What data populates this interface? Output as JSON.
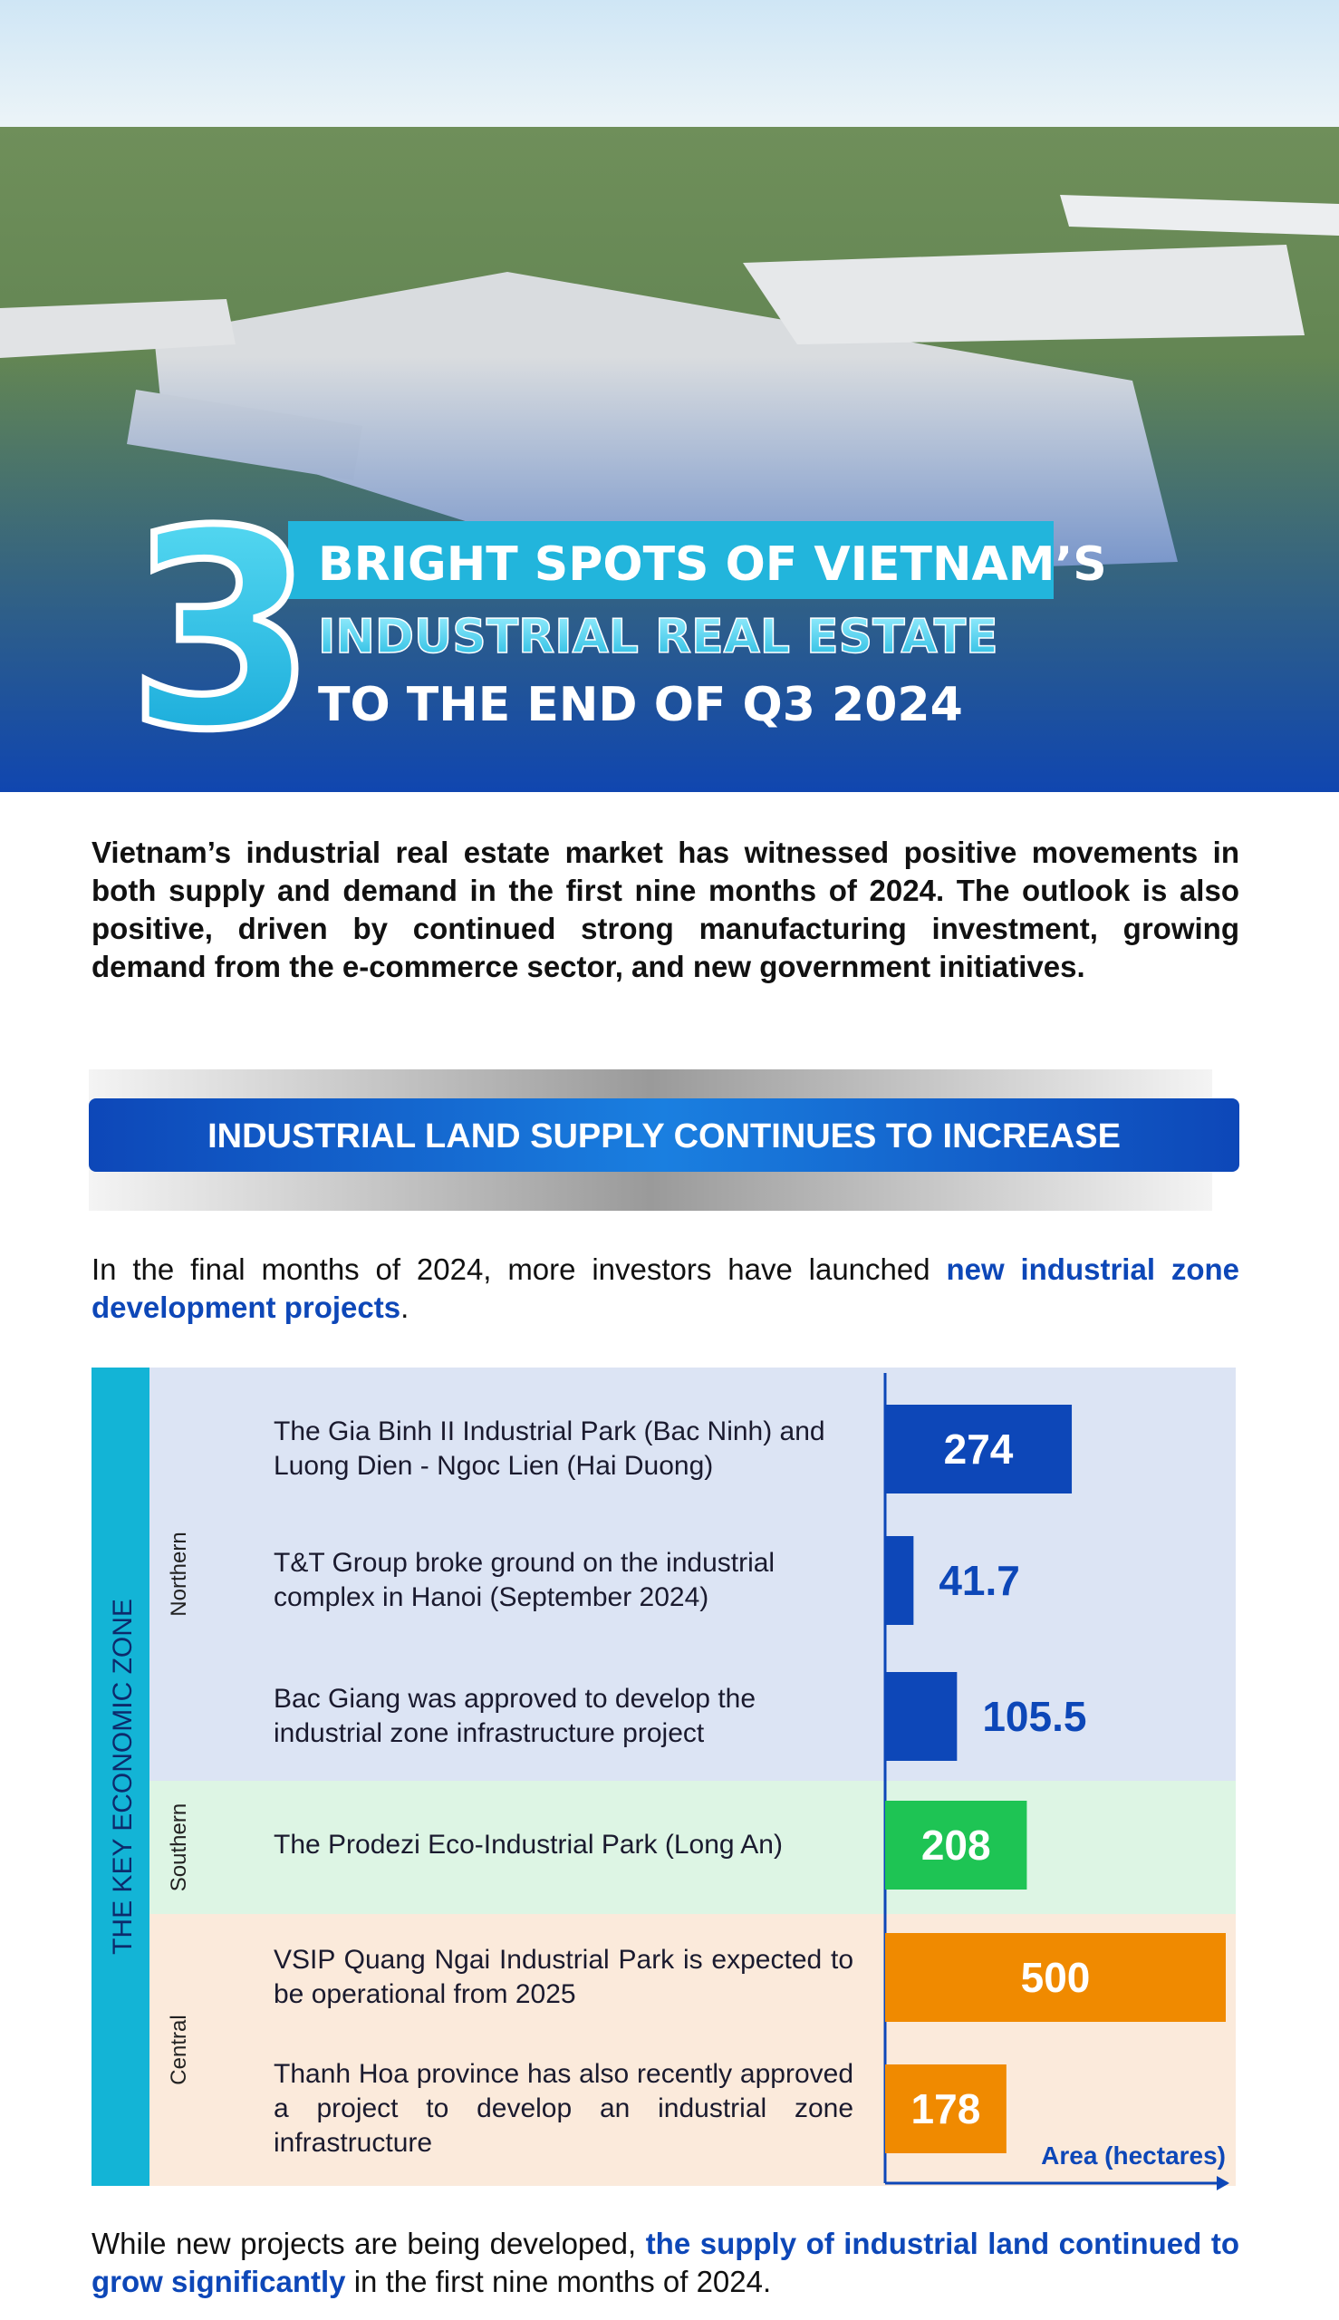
{
  "header": {
    "number": "3",
    "title_lines": [
      "BRIGHT SPOTS OF VIETNAM’S",
      "INDUSTRIAL REAL ESTATE",
      "TO THE END OF Q3 2024"
    ]
  },
  "intro": "Vietnam’s industrial real estate market has witnessed positive movements in both supply and demand in the first nine months of 2024. The outlook is also positive, driven by continued strong manufacturing investment, growing demand from the e-commerce sector, and new government initiatives.",
  "section_title": "INDUSTRIAL LAND SUPPLY CONTINUES TO INCREASE",
  "lead": {
    "text": "In the final months of 2024, more investors have launched",
    "highlight": "new industrial zone development projects",
    "end": "."
  },
  "chart_data": {
    "type": "bar",
    "orientation": "horizontal",
    "group_label": "THE KEY ECONOMIC ZONE",
    "x_label": "Area (hectares)",
    "xlim": [
      0,
      500
    ],
    "series": [
      {
        "name": "Northern",
        "color": "#0d47b8",
        "band_color": "#dce4f4",
        "categories": [
          "The Gia Binh II Industrial Park (Bac Ninh) and Luong Dien - Ngoc Lien (Hai Duong)",
          "T&T Group broke ground on the industrial complex in Hanoi (September 2024)",
          "Bac Giang was approved to develop the industrial zone infrastructure project"
        ],
        "values": [
          274,
          41.7,
          105.5
        ]
      },
      {
        "name": "Southern",
        "color": "#1ec454",
        "band_color": "#ddf5e4",
        "categories": [
          "The Prodezi Eco-Industrial Park (Long An)"
        ],
        "values": [
          208
        ]
      },
      {
        "name": "Central",
        "color": "#f08a00",
        "band_color": "#fbeadb",
        "categories": [
          "VSIP Quang Ngai Industrial Park is expected to be operational from 2025",
          "Thanh Hoa province has also recently approved a project to develop an industrial zone infrastructure"
        ],
        "values": [
          500,
          178
        ]
      }
    ]
  },
  "footer": {
    "text": "While new projects are being developed,",
    "highlight": "the supply of industrial land continued to grow significantly",
    "end": "in the first nine months of 2024."
  }
}
